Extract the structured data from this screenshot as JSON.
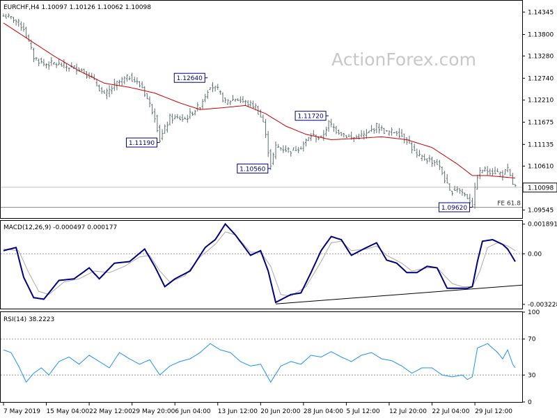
{
  "chart_data": [
    {
      "type": "ohlc",
      "panel": "price",
      "title": "EURCHF,H4  1.10097 1.10126 1.10062 1.10098",
      "watermark": "ActionForex.com",
      "current_price_label": "1.10098",
      "current_price": 1.10098,
      "ylim": [
        1.0935,
        1.1462
      ],
      "yticks": [
        "1.14345",
        "1.13800",
        "1.13280",
        "1.12740",
        "1.12210",
        "1.11675",
        "1.11135",
        "1.10610",
        "1.09545"
      ],
      "ytick_values": [
        1.14345,
        1.138,
        1.1328,
        1.1274,
        1.1221,
        1.11675,
        1.11135,
        1.1061,
        1.09545
      ],
      "fe_label": "FE 61.8",
      "fe_value": 1.0961,
      "annotations": [
        {
          "text": "1.12640",
          "t": 81,
          "price": 1.1264
        },
        {
          "text": "1.11190",
          "t": 62,
          "price": 1.1119
        },
        {
          "text": "1.10560",
          "t": 106,
          "price": 1.1056
        },
        {
          "text": "1.11720",
          "t": 129,
          "price": 1.1172
        },
        {
          "text": "1.09620",
          "t": 186,
          "price": 1.0962
        }
      ],
      "close_anchors": [
        [
          0,
          1.1425
        ],
        [
          4,
          1.1418
        ],
        [
          8,
          1.1395
        ],
        [
          12,
          1.1325
        ],
        [
          16,
          1.1308
        ],
        [
          20,
          1.131
        ],
        [
          25,
          1.1302
        ],
        [
          30,
          1.1298
        ],
        [
          35,
          1.1275
        ],
        [
          40,
          1.1232
        ],
        [
          45,
          1.1262
        ],
        [
          50,
          1.1278
        ],
        [
          55,
          1.1252
        ],
        [
          60,
          1.1182
        ],
        [
          62,
          1.1125
        ],
        [
          66,
          1.1178
        ],
        [
          72,
          1.1175
        ],
        [
          78,
          1.1208
        ],
        [
          82,
          1.1258
        ],
        [
          85,
          1.1245
        ],
        [
          88,
          1.1215
        ],
        [
          92,
          1.1225
        ],
        [
          96,
          1.1215
        ],
        [
          100,
          1.1205
        ],
        [
          103,
          1.1168
        ],
        [
          106,
          1.1065
        ],
        [
          108,
          1.1108
        ],
        [
          114,
          1.1098
        ],
        [
          118,
          1.1108
        ],
        [
          122,
          1.1135
        ],
        [
          126,
          1.1128
        ],
        [
          129,
          1.1165
        ],
        [
          132,
          1.1148
        ],
        [
          138,
          1.1128
        ],
        [
          144,
          1.1138
        ],
        [
          148,
          1.1158
        ],
        [
          152,
          1.1142
        ],
        [
          156,
          1.1145
        ],
        [
          160,
          1.1125
        ],
        [
          164,
          1.1085
        ],
        [
          168,
          1.1078
        ],
        [
          172,
          1.1068
        ],
        [
          174,
          1.1045
        ],
        [
          177,
          1.0998
        ],
        [
          180,
          1.1008
        ],
        [
          184,
          1.0985
        ],
        [
          186,
          1.0968
        ],
        [
          188,
          1.1038
        ],
        [
          190,
          1.1052
        ],
        [
          194,
          1.1048
        ],
        [
          198,
          1.1042
        ],
        [
          200,
          1.1052
        ],
        [
          202,
          1.1018
        ],
        [
          203,
          1.101
        ]
      ],
      "ma_anchors": [
        [
          0,
          1.1408
        ],
        [
          10,
          1.1368
        ],
        [
          20,
          1.1328
        ],
        [
          30,
          1.1292
        ],
        [
          40,
          1.1262
        ],
        [
          50,
          1.1252
        ],
        [
          60,
          1.1238
        ],
        [
          70,
          1.1214
        ],
        [
          78,
          1.1198
        ],
        [
          86,
          1.1202
        ],
        [
          96,
          1.1208
        ],
        [
          104,
          1.1188
        ],
        [
          112,
          1.1158
        ],
        [
          120,
          1.1138
        ],
        [
          130,
          1.1125
        ],
        [
          140,
          1.1128
        ],
        [
          150,
          1.1132
        ],
        [
          160,
          1.1125
        ],
        [
          170,
          1.1106
        ],
        [
          180,
          1.1066
        ],
        [
          186,
          1.1038
        ],
        [
          192,
          1.1038
        ],
        [
          203,
          1.1032
        ]
      ]
    },
    {
      "type": "line",
      "panel": "macd",
      "title": "MACD(12,26,9) -0.000497 0.000177",
      "ylim": [
        -0.0035,
        0.0021
      ],
      "yticks": [
        "0.001891",
        "0.00",
        "-0.003228"
      ],
      "ytick_values": [
        0.001891,
        0.0,
        -0.003228
      ],
      "series": [
        {
          "type": "line",
          "anchors": [
            [
              0,
              0.0002
            ],
            [
              5,
              0.0004
            ],
            [
              8,
              -0.0015
            ],
            [
              12,
              -0.0028
            ],
            [
              16,
              -0.0029
            ],
            [
              22,
              -0.0017
            ],
            [
              28,
              -0.0016
            ],
            [
              34,
              -0.0009
            ],
            [
              38,
              -0.0016
            ],
            [
              44,
              -0.0006
            ],
            [
              50,
              -0.0005
            ],
            [
              56,
              0.0003
            ],
            [
              60,
              -0.0008
            ],
            [
              64,
              -0.0021
            ],
            [
              68,
              -0.0016
            ],
            [
              74,
              -0.0011
            ],
            [
              80,
              0.0004
            ],
            [
              84,
              0.0009
            ],
            [
              88,
              0.0019
            ],
            [
              92,
              0.0012
            ],
            [
              98,
              -0.0001
            ],
            [
              102,
              0.0002
            ],
            [
              105,
              -0.0011
            ],
            [
              108,
              -0.0031
            ],
            [
              114,
              -0.0026
            ],
            [
              118,
              -0.0025
            ],
            [
              122,
              -0.0012
            ],
            [
              126,
              0.0002
            ],
            [
              130,
              0.0011
            ],
            [
              134,
              0.0009
            ],
            [
              138,
              -0.0001
            ],
            [
              144,
              0.0004
            ],
            [
              148,
              0.0007
            ],
            [
              152,
              -0.0004
            ],
            [
              156,
              -0.0006
            ],
            [
              160,
              -0.0012
            ],
            [
              164,
              -0.0012
            ],
            [
              168,
              -0.0008
            ],
            [
              172,
              -0.0009
            ],
            [
              176,
              -0.0022
            ],
            [
              180,
              -0.0022
            ],
            [
              184,
              -0.0022
            ],
            [
              186,
              -0.0021
            ],
            [
              188,
              -0.0005
            ],
            [
              190,
              0.0008
            ],
            [
              194,
              0.0009
            ],
            [
              198,
              0.0006
            ],
            [
              200,
              0.0003
            ],
            [
              203,
              -0.0005
            ]
          ]
        },
        {
          "type": "line",
          "anchors": [
            [
              0,
              0.0003
            ],
            [
              6,
              0.0002
            ],
            [
              10,
              -0.0012
            ],
            [
              14,
              -0.0024
            ],
            [
              18,
              -0.0026
            ],
            [
              24,
              -0.0018
            ],
            [
              30,
              -0.0016
            ],
            [
              36,
              -0.0011
            ],
            [
              42,
              -0.0012
            ],
            [
              48,
              -0.0008
            ],
            [
              54,
              -0.0002
            ],
            [
              58,
              -0.0001
            ],
            [
              62,
              -0.0011
            ],
            [
              66,
              -0.0018
            ],
            [
              72,
              -0.0014
            ],
            [
              78,
              -0.0002
            ],
            [
              84,
              0.0006
            ],
            [
              88,
              0.0014
            ],
            [
              92,
              0.0012
            ],
            [
              98,
              0.0001
            ],
            [
              102,
              0.0001
            ],
            [
              106,
              -0.0008
            ],
            [
              110,
              -0.0026
            ],
            [
              114,
              -0.0027
            ],
            [
              120,
              -0.0021
            ],
            [
              126,
              -0.0005
            ],
            [
              130,
              0.0007
            ],
            [
              134,
              0.0008
            ],
            [
              138,
              0.0002
            ],
            [
              144,
              0.0003
            ],
            [
              148,
              0.0005
            ],
            [
              152,
              -0.0001
            ],
            [
              158,
              -0.0006
            ],
            [
              162,
              -0.0011
            ],
            [
              168,
              -0.0009
            ],
            [
              172,
              -0.0009
            ],
            [
              178,
              -0.0019
            ],
            [
              182,
              -0.0021
            ],
            [
              186,
              -0.0021
            ],
            [
              189,
              -0.0011
            ],
            [
              192,
              0.0004
            ],
            [
              196,
              0.0007
            ],
            [
              200,
              0.0005
            ],
            [
              203,
              0.0002
            ]
          ]
        }
      ],
      "trendline": {
        "from": [
          108,
          -0.0032
        ],
        "to": [
          210,
          -0.002
        ]
      }
    },
    {
      "type": "line",
      "panel": "rsi",
      "title": "RSI(14) 38.2223",
      "ylim": [
        0,
        100
      ],
      "yticks": [
        "100",
        "70",
        "30",
        "0"
      ],
      "ytick_values": [
        100,
        70,
        30,
        0
      ],
      "levels": [
        70,
        30
      ],
      "series": [
        {
          "type": "line",
          "anchors": [
            [
              0,
              58
            ],
            [
              3,
              55
            ],
            [
              6,
              40
            ],
            [
              9,
              22
            ],
            [
              12,
              32
            ],
            [
              15,
              38
            ],
            [
              18,
              30
            ],
            [
              22,
              45
            ],
            [
              26,
              50
            ],
            [
              30,
              42
            ],
            [
              34,
              52
            ],
            [
              38,
              45
            ],
            [
              42,
              38
            ],
            [
              46,
              55
            ],
            [
              50,
              48
            ],
            [
              54,
              42
            ],
            [
              58,
              47
            ],
            [
              62,
              30
            ],
            [
              66,
              40
            ],
            [
              70,
              45
            ],
            [
              74,
              48
            ],
            [
              78,
              55
            ],
            [
              82,
              65
            ],
            [
              86,
              58
            ],
            [
              90,
              55
            ],
            [
              94,
              45
            ],
            [
              98,
              40
            ],
            [
              102,
              42
            ],
            [
              106,
              22
            ],
            [
              110,
              40
            ],
            [
              114,
              45
            ],
            [
              118,
              42
            ],
            [
              122,
              52
            ],
            [
              126,
              50
            ],
            [
              130,
              56
            ],
            [
              134,
              50
            ],
            [
              138,
              45
            ],
            [
              142,
              52
            ],
            [
              146,
              55
            ],
            [
              150,
              48
            ],
            [
              154,
              46
            ],
            [
              158,
              40
            ],
            [
              162,
              32
            ],
            [
              166,
              38
            ],
            [
              170,
              38
            ],
            [
              174,
              30
            ],
            [
              178,
              28
            ],
            [
              182,
              30
            ],
            [
              184,
              25
            ],
            [
              186,
              28
            ],
            [
              188,
              60
            ],
            [
              192,
              65
            ],
            [
              196,
              55
            ],
            [
              198,
              48
            ],
            [
              200,
              58
            ],
            [
              202,
              42
            ],
            [
              203,
              38
            ]
          ]
        }
      ]
    }
  ],
  "x_axis": {
    "tick_labels": [
      "7 May 2019",
      "15 May 04:00",
      "22 May 12:00",
      "29 May 20:00",
      "6 Jun 04:00",
      "13 Jun 12:00",
      "20 Jun 20:00",
      "28 Jun 04:00",
      "5 Jul 12:00",
      "12 Jul 20:00",
      "22 Jul 04:00",
      "29 Jul 12:00"
    ],
    "tick_positions": [
      0,
      17,
      34,
      51,
      68,
      85,
      102,
      119,
      136,
      153,
      170,
      187
    ],
    "bar_count": 204
  },
  "colors": {
    "bars": "#5f6f70",
    "ma": "#cc0000",
    "macd_main": "#000080",
    "macd_signal": "#aaaaaa",
    "rsi": "#1e90ff",
    "label_text": "#000080",
    "watermark": "#c8c8c8"
  }
}
